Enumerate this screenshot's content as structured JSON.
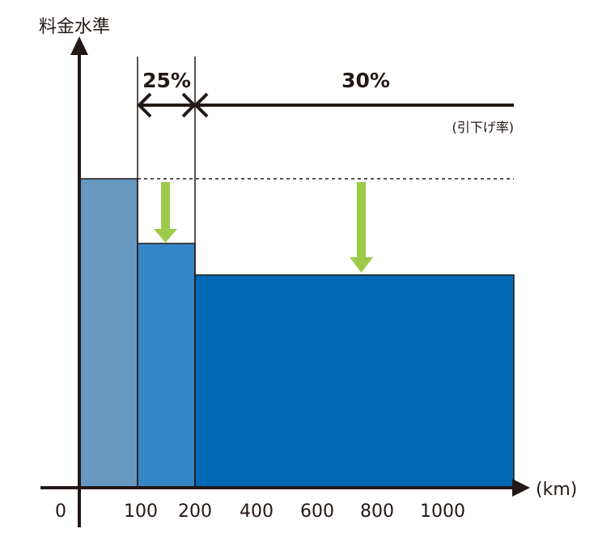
{
  "y_axis_label": "料金水準",
  "x_axis_unit": "(km)",
  "rate_note": "(引下げ率)",
  "discounts": [
    {
      "range": "100-200",
      "label": "25%"
    },
    {
      "range": "200-",
      "label": "30%"
    }
  ],
  "x_ticks": [
    "0",
    "100",
    "200",
    "400",
    "600",
    "800",
    "1000"
  ],
  "bands": [
    {
      "range": "0-100",
      "relative_level": 1.0,
      "color": "#6699c2"
    },
    {
      "range": "100-200",
      "relative_level": 0.75,
      "color": "#3586c6"
    },
    {
      "range": "200-",
      "relative_level": 0.7,
      "color": "#0068b7"
    }
  ],
  "colors": {
    "axis": "#231815",
    "arrow": "#9dc94a"
  }
}
